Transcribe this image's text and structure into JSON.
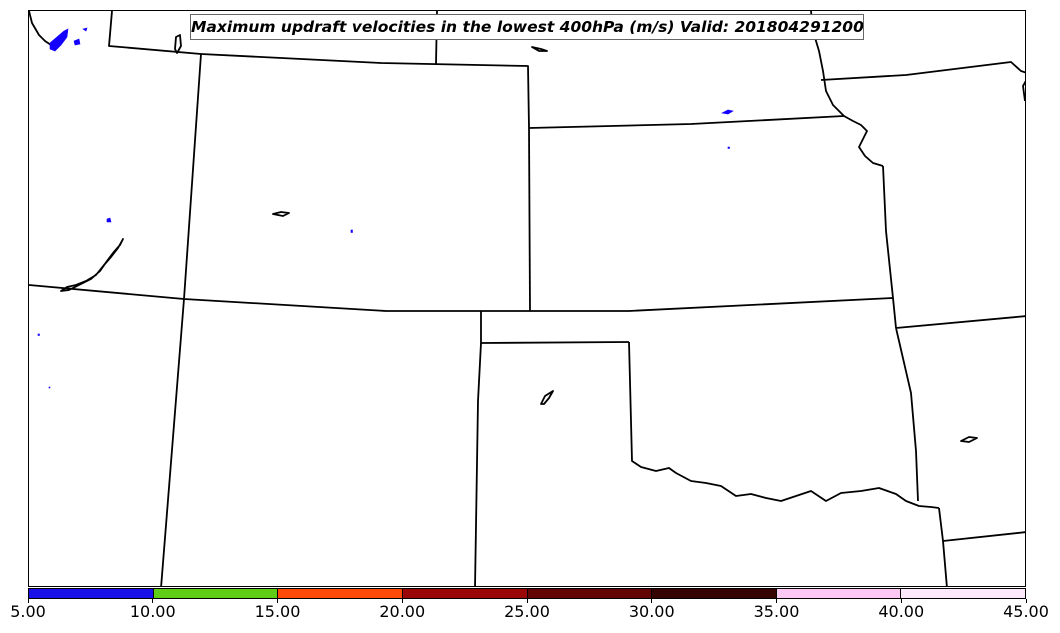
{
  "title": "Maximum updraft velocities in the lowest 400hPa (m/s) Valid: 201804291200",
  "colorbar": {
    "tick_labels": [
      "5.00",
      "10.00",
      "15.00",
      "20.00",
      "25.00",
      "30.00",
      "35.00",
      "40.00",
      "45.00"
    ],
    "colors": [
      "#1a10e8",
      "#5fcc16",
      "#ff4a0a",
      "#9a0505",
      "#620404",
      "#360303",
      "#fdc9f4",
      "#fde9fb"
    ]
  },
  "map": {
    "boundary_color": "#000000",
    "updraft_cell_color": "#1400ff"
  }
}
